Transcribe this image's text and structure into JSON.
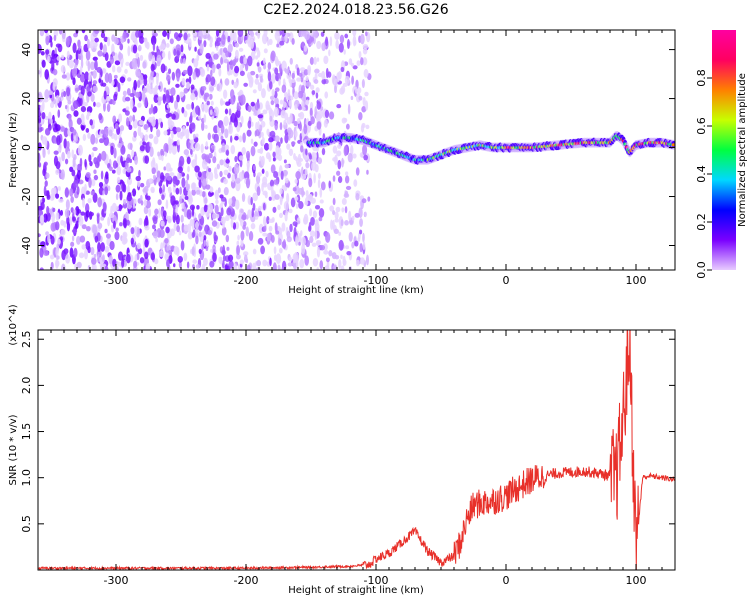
{
  "title": "C2E2.2024.018.23.56.G26",
  "chart_data": [
    {
      "type": "heatmap",
      "xlabel": "Height of straight line (km)",
      "ylabel": "Frequency (Hz)",
      "xlim": [
        -360,
        130
      ],
      "ylim": [
        -50,
        48
      ],
      "x_ticks": [
        -300,
        -200,
        -100,
        0,
        100
      ],
      "y_ticks": [
        -40,
        -20,
        0,
        20,
        40
      ],
      "colorbar": {
        "label": "Normalized spectral amplitude",
        "range": [
          0,
          1
        ],
        "ticks": [
          "0.0",
          "0.2",
          "0.4",
          "0.6",
          "0.8"
        ],
        "tick_values": [
          0,
          0.2,
          0.4,
          0.6,
          0.8
        ],
        "colors": [
          "#e8ccff",
          "#7a00ff",
          "#0000ff",
          "#00d8ff",
          "#00ff40",
          "#c8ff00",
          "#ff8000",
          "#ff0060",
          "#ff00a0"
        ]
      },
      "noise_region_x": [
        -360,
        -105
      ],
      "signal_ridge": {
        "x": [
          -150,
          -140,
          -130,
          -120,
          -110,
          -100,
          -90,
          -80,
          -70,
          -60,
          -50,
          -40,
          -30,
          -20,
          -10,
          0,
          10,
          20,
          40,
          60,
          80,
          85,
          90,
          95,
          100,
          110,
          120,
          130
        ],
        "y": [
          2,
          2,
          4,
          4,
          3,
          1,
          -1,
          -3,
          -5,
          -5,
          -3,
          -1,
          0,
          1,
          0,
          0,
          0,
          0,
          1,
          2,
          2,
          5,
          3,
          -2,
          1,
          2,
          2,
          1
        ]
      }
    },
    {
      "type": "line",
      "xlabel": "Height of straight line (km)",
      "ylabel": "SNR (10 * v/v)",
      "yscale_label": "(x10^4)",
      "xlim": [
        -360,
        130
      ],
      "ylim": [
        0,
        2.6
      ],
      "x_ticks": [
        -300,
        -200,
        -100,
        0,
        100
      ],
      "y_ticks": [
        0.5,
        1.0,
        1.5,
        2.0,
        2.5
      ],
      "y_tick_labels": [
        "0.5",
        "1.0",
        "1.5",
        "2.0",
        "2.5"
      ],
      "series": [
        {
          "color": "#e8302a",
          "x": [
            -360,
            -300,
            -250,
            -200,
            -150,
            -120,
            -105,
            -100,
            -90,
            -80,
            -70,
            -60,
            -50,
            -40,
            -35,
            -30,
            -25,
            -20,
            -10,
            0,
            10,
            20,
            30,
            40,
            50,
            60,
            70,
            80,
            85,
            90,
            95,
            100,
            105,
            110,
            120,
            130
          ],
          "y": [
            0.02,
            0.02,
            0.02,
            0.02,
            0.03,
            0.04,
            0.06,
            0.12,
            0.18,
            0.3,
            0.42,
            0.2,
            0.08,
            0.15,
            0.3,
            0.55,
            0.7,
            0.72,
            0.75,
            0.8,
            0.9,
            0.98,
            1.02,
            1.05,
            1.06,
            1.07,
            1.05,
            1.02,
            1.0,
            1.6,
            2.5,
            0.2,
            1.0,
            1.02,
            1.0,
            0.98
          ]
        }
      ]
    }
  ]
}
